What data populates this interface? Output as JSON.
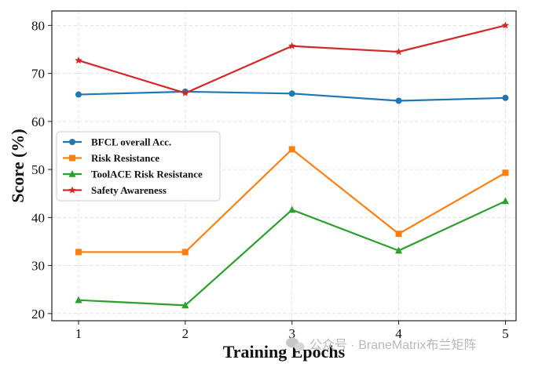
{
  "chart_data": {
    "type": "line",
    "title": "",
    "xlabel": "Training Epochs",
    "ylabel": "Score (%)",
    "x": [
      1,
      2,
      3,
      4,
      5
    ],
    "xlim": [
      0.75,
      5.1
    ],
    "ylim": [
      18.5,
      83
    ],
    "xticks": [
      1,
      2,
      3,
      4,
      5
    ],
    "yticks": [
      20,
      30,
      40,
      50,
      60,
      70,
      80
    ],
    "grid": true,
    "legend_position": "center-left",
    "series": [
      {
        "name": "BFCL overall Acc.",
        "values": [
          65.6,
          66.2,
          65.8,
          64.3,
          64.9
        ],
        "color": "#1f77b4",
        "marker": "circle"
      },
      {
        "name": "Risk Resistance",
        "values": [
          32.8,
          32.8,
          54.2,
          36.6,
          49.3
        ],
        "color": "#ff7f0e",
        "marker": "square"
      },
      {
        "name": "ToolACE Risk Resistance",
        "values": [
          22.8,
          21.7,
          41.6,
          33.1,
          43.4
        ],
        "color": "#2ca02c",
        "marker": "triangle"
      },
      {
        "name": "Safety Awareness",
        "values": [
          72.7,
          65.9,
          75.7,
          74.5,
          80.0
        ],
        "color": "#d62728",
        "marker": "star"
      }
    ]
  },
  "watermark": {
    "text": "公众号 · BraneMatrix布兰矩阵"
  }
}
